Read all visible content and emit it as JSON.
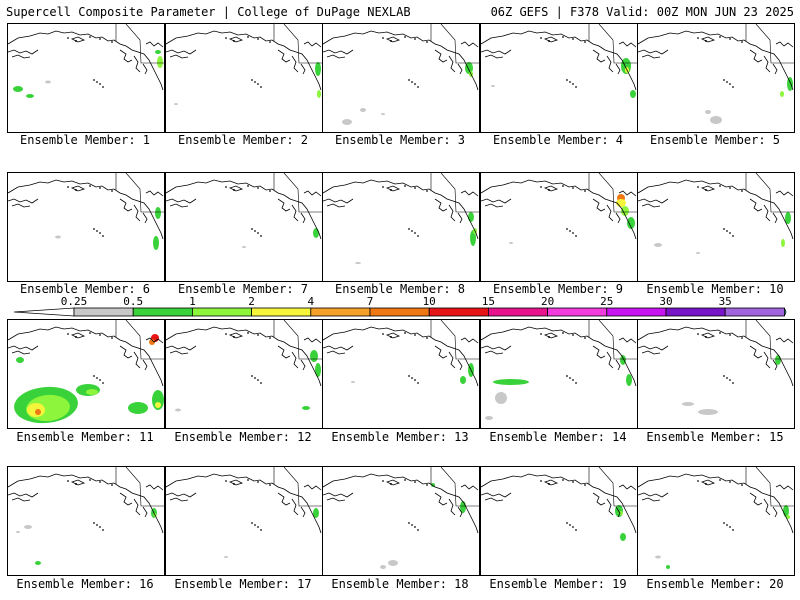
{
  "header": {
    "left": "Supercell Composite Parameter | College of DuPage NEXLAB",
    "right": "06Z GEFS | F378 Valid: 00Z MON JUN 23 2025"
  },
  "members": [
    {
      "label": "Ensemble Member: 1"
    },
    {
      "label": "Ensemble Member: 2"
    },
    {
      "label": "Ensemble Member: 3"
    },
    {
      "label": "Ensemble Member: 4"
    },
    {
      "label": "Ensemble Member: 5"
    },
    {
      "label": "Ensemble Member: 6"
    },
    {
      "label": "Ensemble Member: 7"
    },
    {
      "label": "Ensemble Member: 8"
    },
    {
      "label": "Ensemble Member: 9"
    },
    {
      "label": "Ensemble Member: 10"
    },
    {
      "label": "Ensemble Member: 11"
    },
    {
      "label": "Ensemble Member: 12"
    },
    {
      "label": "Ensemble Member: 13"
    },
    {
      "label": "Ensemble Member: 14"
    },
    {
      "label": "Ensemble Member: 15"
    },
    {
      "label": "Ensemble Member: 16"
    },
    {
      "label": "Ensemble Member: 17"
    },
    {
      "label": "Ensemble Member: 18"
    },
    {
      "label": "Ensemble Member: 19"
    },
    {
      "label": "Ensemble Member: 20"
    }
  ],
  "colorbar": {
    "ticks": [
      "0.25",
      "0.5",
      "1",
      "2",
      "4",
      "7",
      "10",
      "15",
      "20",
      "25",
      "30",
      "35"
    ],
    "colors": [
      "#c8c8c8",
      "#3ad23a",
      "#8cf53c",
      "#f5f53c",
      "#f5a028",
      "#f07814",
      "#e61414",
      "#e6148c",
      "#f03cdc",
      "#c814f0",
      "#7814c8",
      "#a064dc"
    ]
  },
  "map_colors": {
    "weak": "#c8c8c8",
    "low": "#3ad23a",
    "mid": "#8cf53c",
    "high": "#f5f53c",
    "very_high": "#f07814",
    "extreme": "#e61414"
  }
}
